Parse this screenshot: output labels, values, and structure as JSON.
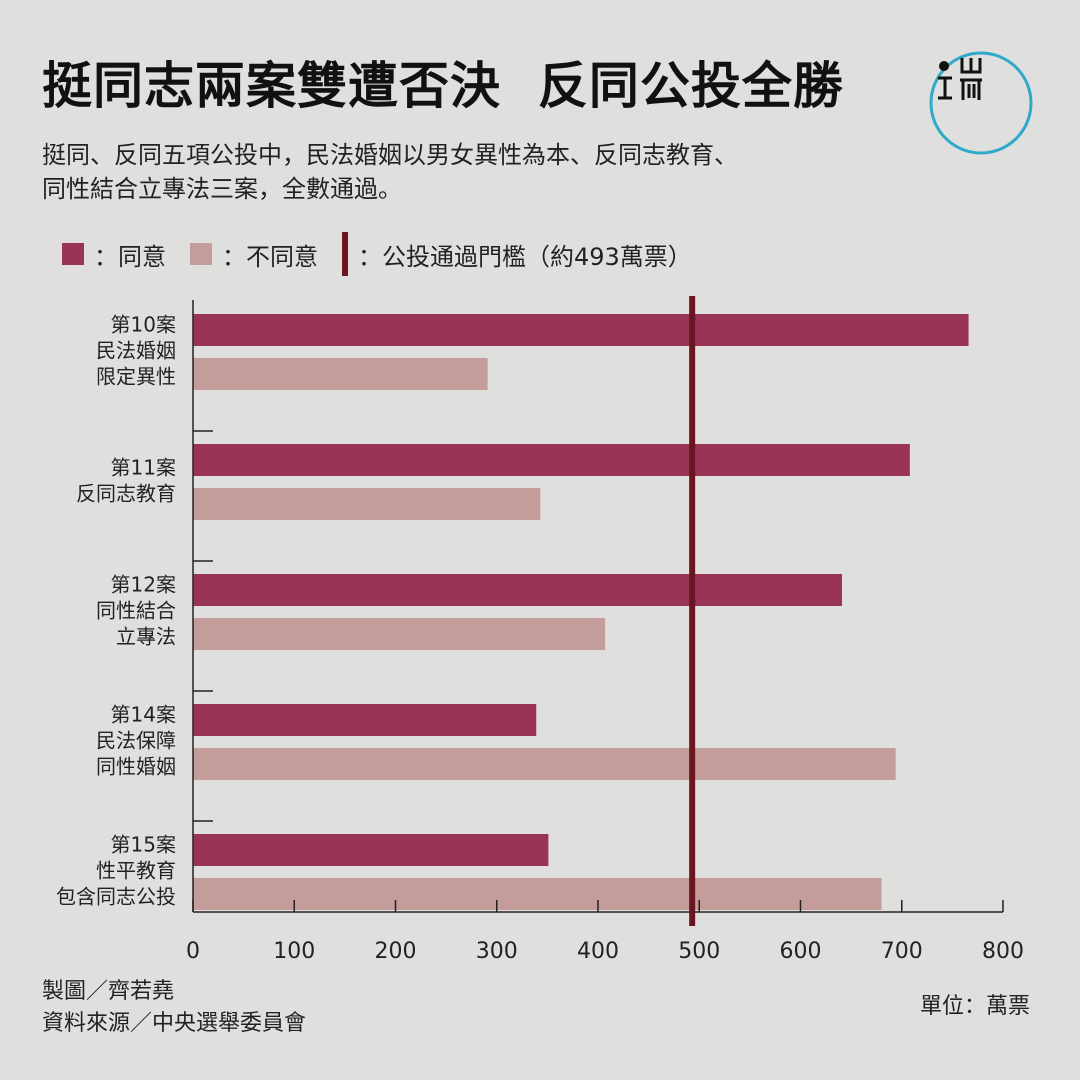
{
  "title": "挺同志兩案雙遭否決  反同公投全勝",
  "subtitle_lines": [
    "挺同、反同五項公投中，民法婚姻以男女異性為本、反同志教育、",
    "同性結合立專法三案，全數通過。"
  ],
  "legend": {
    "agree": "：同意",
    "disagree": "：不同意",
    "threshold": "：公投通過門檻（約493萬票）"
  },
  "colors": {
    "agree": "#993456",
    "disagree": "#c49d9b",
    "threshold": "#6b1520",
    "logo": "#2ea9c9"
  },
  "logo_icon": "端-logo-icon",
  "credit": {
    "designer": "製圖／齊若堯",
    "source": "資料來源／中央選舉委員會"
  },
  "unit": "單位：萬票",
  "chart_data": {
    "type": "bar",
    "orientation": "horizontal",
    "categories": [
      [
        "第10案",
        "民法婚姻",
        "限定異性"
      ],
      [
        "第11案",
        "反同志教育"
      ],
      [
        "第12案",
        "同性結合",
        "立專法"
      ],
      [
        "第14案",
        "民法保障",
        "同性婚姻"
      ],
      [
        "第15案",
        "性平教育",
        "包含同志公投"
      ]
    ],
    "series": [
      {
        "name": "同意",
        "values": [
          766,
          708,
          641,
          339,
          351
        ]
      },
      {
        "name": "不同意",
        "values": [
          291,
          343,
          407,
          694,
          680
        ]
      }
    ],
    "threshold": 493,
    "xlim": [
      0,
      800
    ],
    "xticks": [
      0,
      100,
      200,
      300,
      400,
      500,
      600,
      700,
      800
    ],
    "grid": false
  }
}
